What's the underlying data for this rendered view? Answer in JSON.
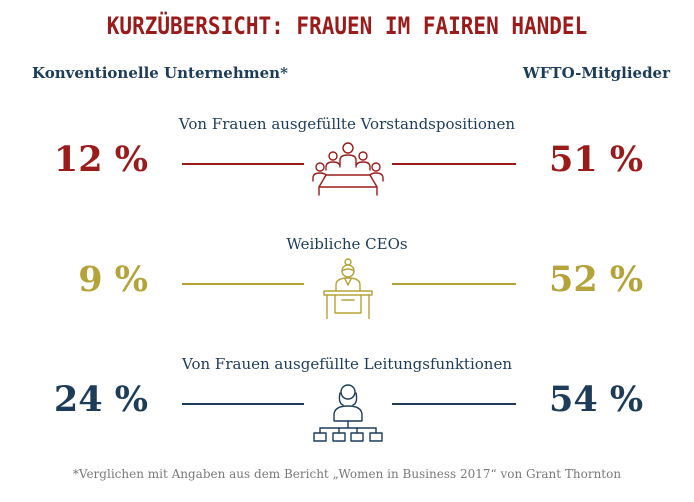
{
  "title": "KURZÜBERSICHT: FRAUEN IM FAIREN HANDEL",
  "header": {
    "left": "Konventionelle Unternehmen*",
    "right": "WFTO-Mitglieder"
  },
  "footnote": "*Verglichen mit Angaben aus dem Bericht „Women in Business 2017“ von Grant Thornton",
  "chart_data": {
    "type": "table",
    "title": "KURZÜBERSICHT: FRAUEN IM FAIREN HANDEL",
    "columns": [
      "Konventionelle Unternehmen*",
      "WFTO-Mitglieder"
    ],
    "rows": [
      {
        "label": "Von Frauen ausgefüllte Vorstandspositionen",
        "conventional": "12 %",
        "wfto": "51 %",
        "color": "#9b1b1b",
        "icon": "boardroom-icon"
      },
      {
        "label": "Weibliche CEOs",
        "conventional": "9 %",
        "wfto": "52 %",
        "color": "#b5a33a",
        "icon": "female-ceo-icon"
      },
      {
        "label": "Von Frauen ausgefüllte Leitungsfunktionen",
        "conventional": "24 %",
        "wfto": "54 %",
        "color": "#1d3c5a",
        "icon": "org-chart-icon"
      }
    ]
  }
}
